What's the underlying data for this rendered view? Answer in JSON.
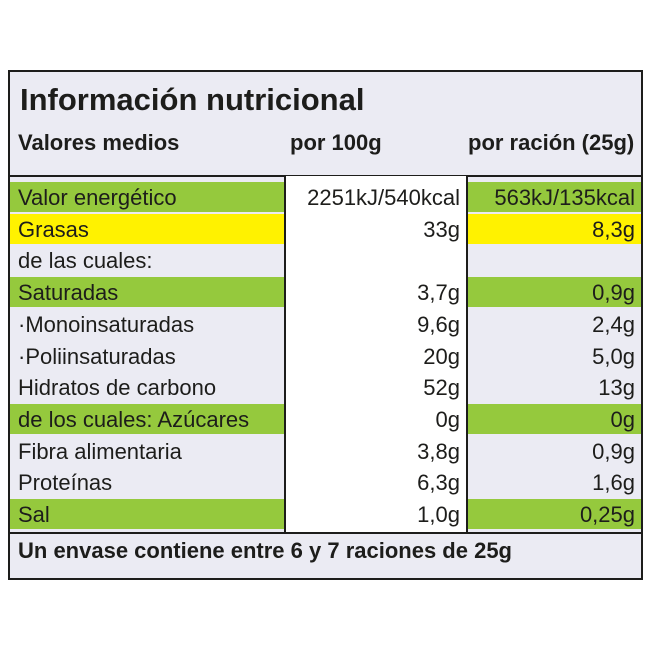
{
  "title": "Información nutricional",
  "headers": [
    "Valores medios",
    "por 100g",
    "por ración (25g)"
  ],
  "colors": {
    "green": "#95c93d",
    "yellow": "#fff200"
  },
  "rows": [
    {
      "cells": [
        "Valor energético",
        "2251kJ/540kcal",
        "563kJ/135kcal"
      ],
      "highlight": "green"
    },
    {
      "cells": [
        "Grasas",
        "33g",
        "8,3g"
      ],
      "highlight": "yellow"
    },
    {
      "cells": [
        "de las cuales:",
        "",
        ""
      ]
    },
    {
      "cells": [
        "Saturadas",
        "3,7g",
        "0,9g"
      ],
      "highlight": "green"
    },
    {
      "cells": [
        "·Monoinsaturadas",
        "9,6g",
        "2,4g"
      ]
    },
    {
      "cells": [
        "·Poliinsaturadas",
        "20g",
        "5,0g"
      ]
    },
    {
      "cells": [
        "Hidratos de carbono",
        "52g",
        "13g"
      ]
    },
    {
      "cells": [
        "de los cuales: Azúcares",
        "0g",
        "0g"
      ],
      "highlight": "green"
    },
    {
      "cells": [
        "Fibra alimentaria",
        "3,8g",
        "0,9g"
      ]
    },
    {
      "cells": [
        "Proteínas",
        "6,3g",
        "1,6g"
      ]
    },
    {
      "cells": [
        "Sal",
        "1,0g",
        "0,25g"
      ],
      "highlight": "green"
    }
  ],
  "footer": "Un envase contiene entre 6 y 7 raciones de 25g"
}
